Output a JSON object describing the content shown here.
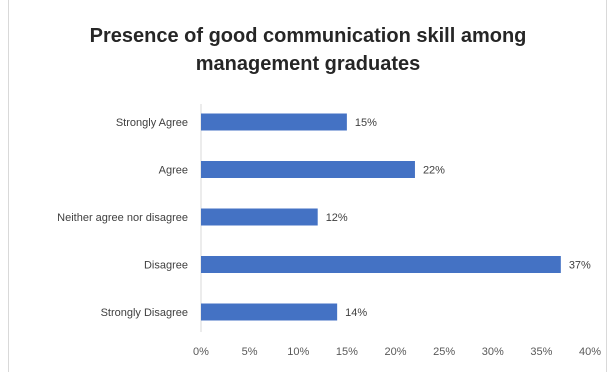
{
  "chart_data": {
    "type": "bar",
    "orientation": "horizontal",
    "title_lines": [
      "Presence of good communication skill among",
      "management graduates"
    ],
    "categories": [
      "Strongly Agree",
      "Agree",
      "Neither agree nor disagree",
      "Disagree",
      "Strongly Disagree"
    ],
    "values": [
      15,
      22,
      12,
      37,
      14
    ],
    "data_labels": [
      "15%",
      "22%",
      "12%",
      "37%",
      "14%"
    ],
    "xlim": [
      0,
      40
    ],
    "xticks": [
      "0%",
      "5%",
      "10%",
      "15%",
      "20%",
      "25%",
      "30%",
      "35%",
      "40%"
    ],
    "xlabel": "",
    "ylabel": "",
    "bar_color": "#4472c4",
    "grid": false,
    "legend": "none"
  }
}
